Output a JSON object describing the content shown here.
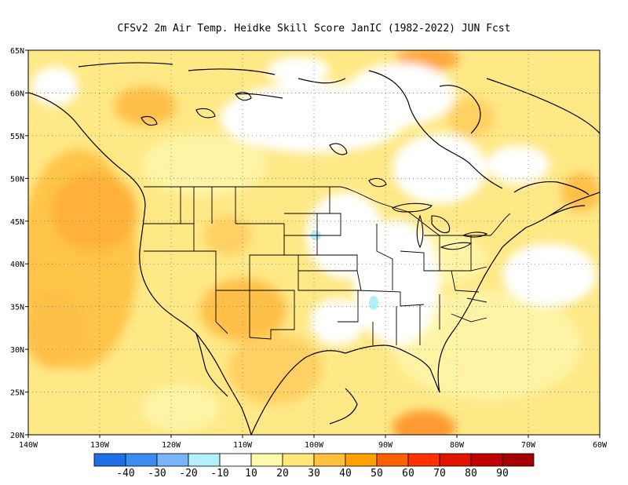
{
  "title": "CFSv2  2m Air Temp. Heidke Skill Score JanIC (1982-2022) JUN Fcst",
  "map": {
    "lat_range": [
      20,
      65
    ],
    "lon_range": [
      -140,
      -60
    ],
    "lat_ticks": [
      "20N",
      "25N",
      "30N",
      "35N",
      "40N",
      "45N",
      "50N",
      "55N",
      "60N",
      "65N"
    ],
    "lon_ticks": [
      "140W",
      "130W",
      "120W",
      "110W",
      "100W",
      "90W",
      "80W",
      "70W",
      "60W"
    ],
    "gridlines": "dotted"
  },
  "colorbar": {
    "colors": [
      "#1e6ee6",
      "#3c8cf0",
      "#78b4fa",
      "#b4f0fa",
      "#ffffff",
      "#fffaaa",
      "#ffe878",
      "#ffc03c",
      "#ffa000",
      "#ff6000",
      "#ff3200",
      "#e11400",
      "#c00000",
      "#a50000"
    ],
    "labels": [
      "-40",
      "-30",
      "-20",
      "-10",
      "10",
      "20",
      "30",
      "40",
      "50",
      "60",
      "70",
      "80",
      "90"
    ]
  }
}
